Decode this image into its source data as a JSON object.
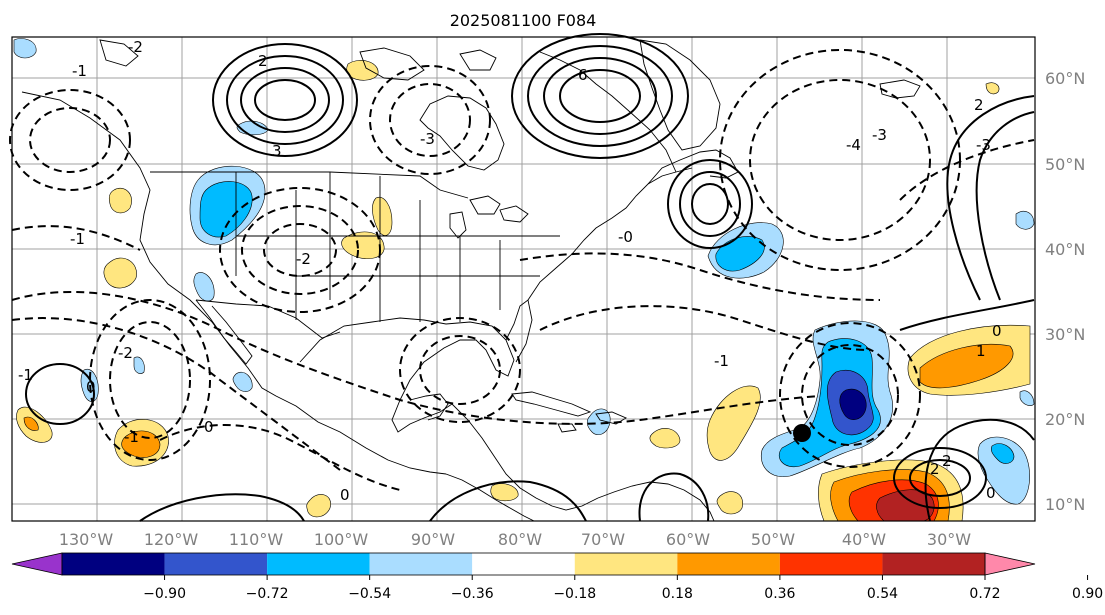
{
  "title": "2025081100 F084",
  "longitude_labels": [
    "130°W",
    "120°W",
    "110°W",
    "100°W",
    "90°W",
    "80°W",
    "70°W",
    "60°W",
    "50°W",
    "40°W",
    "30°W"
  ],
  "latitude_labels": [
    "60°N",
    "50°N",
    "40°N",
    "30°N",
    "20°N",
    "10°N"
  ],
  "colorbar": {
    "tick_labels": [
      "−0.90",
      "−0.72",
      "−0.54",
      "−0.36",
      "−0.18",
      "0.18",
      "0.36",
      "0.54",
      "0.72",
      "0.90"
    ],
    "colors": [
      "#9933cc",
      "#000080",
      "#3355cc",
      "#00bbff",
      "#aaddff",
      "#ffffff",
      "#ffe680",
      "#ff9900",
      "#ff3300",
      "#b22222",
      "#ff88aa"
    ]
  },
  "contour_labels": [
    "-2",
    "-1",
    "2",
    "-3",
    "6",
    "-4",
    "-3",
    "3",
    "-2",
    "2",
    "-1",
    "-0",
    "0",
    "-1",
    "-2",
    "2",
    "0",
    "-1",
    "0",
    "-1",
    "-3",
    "1",
    "2",
    "0",
    "0"
  ],
  "marker": "black-dot",
  "colors": {
    "contour": "#000000",
    "grid": "#a0a0a0",
    "coast": "#000000",
    "positive": "#ffe680",
    "strong_positive": "#ff9900",
    "negative": "#aaddff",
    "strong_negative": "#00bbff"
  }
}
